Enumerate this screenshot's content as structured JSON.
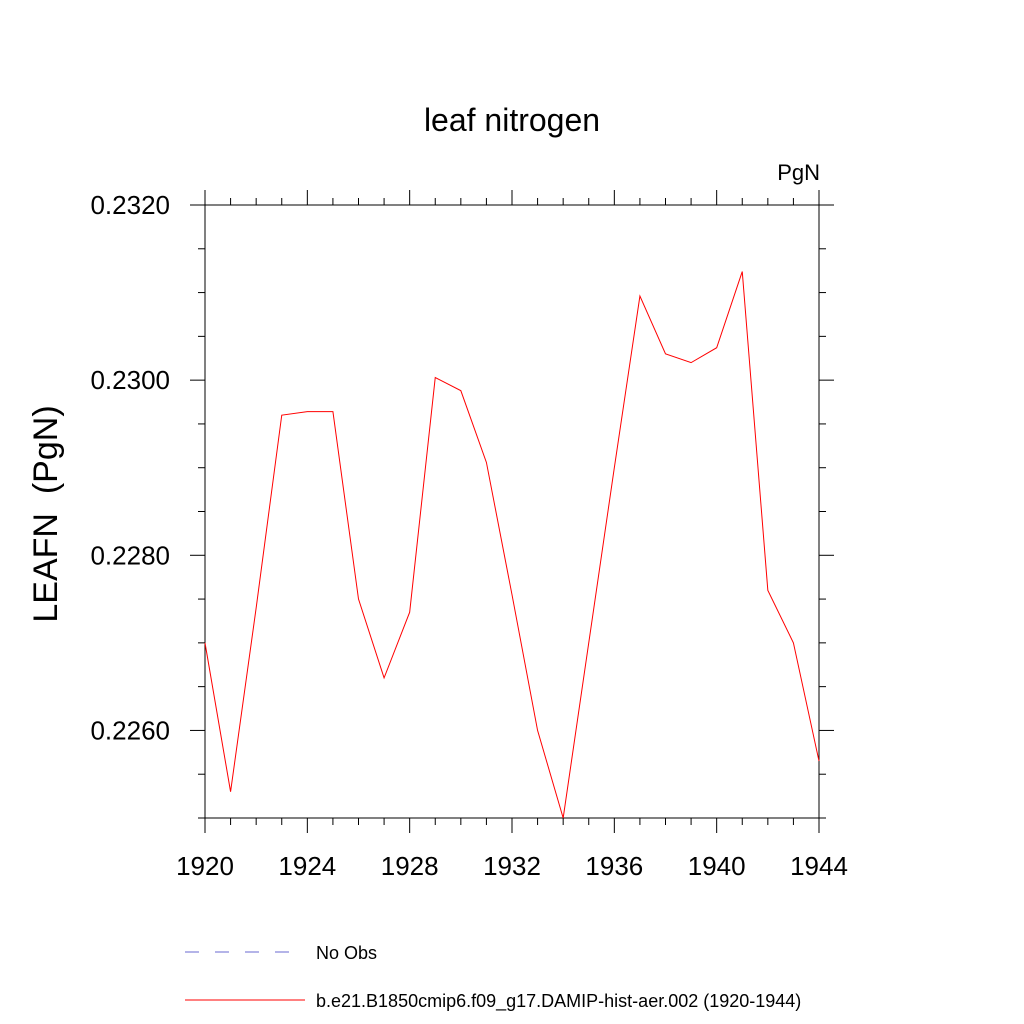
{
  "chart_data": {
    "type": "line",
    "title": "leaf nitrogen",
    "units_label": "PgN",
    "ylabel": "LEAFN  (PgN)",
    "xlabel": "",
    "xlim": [
      1920,
      1944
    ],
    "ylim": [
      0.225,
      0.232
    ],
    "x_ticks": [
      1920,
      1924,
      1928,
      1932,
      1936,
      1940,
      1944
    ],
    "x_tick_labels": [
      "1920",
      "1924",
      "1928",
      "1932",
      "1936",
      "1940",
      "1944"
    ],
    "y_ticks": [
      0.226,
      0.228,
      0.23,
      0.232
    ],
    "y_tick_labels": [
      "0.2260",
      "0.2280",
      "0.2300",
      "0.2320"
    ],
    "grid": false,
    "legend_position": "bottom",
    "series": [
      {
        "name": "b.e21.B1850cmip6.f09_g17.DAMIP-hist-aer.002 (1920-1944)",
        "color": "#ff0000",
        "dash": "solid",
        "x": [
          1920,
          1921,
          1922,
          1923,
          1924,
          1925,
          1926,
          1927,
          1928,
          1929,
          1930,
          1931,
          1932,
          1933,
          1934,
          1935,
          1936,
          1937,
          1938,
          1939,
          1940,
          1941,
          1942,
          1943,
          1944
        ],
        "y": [
          0.227,
          0.2253,
          0.2274,
          0.2296,
          0.22964,
          0.22964,
          0.2275,
          0.2266,
          0.22735,
          0.23003,
          0.22988,
          0.22906,
          0.22755,
          0.226,
          0.225,
          0.227,
          0.229,
          0.23096,
          0.2303,
          0.2302,
          0.23037,
          0.23124,
          0.2276,
          0.227,
          0.22565
        ]
      }
    ],
    "legend": [
      {
        "label": "No Obs",
        "color": "#6a6ad0",
        "dash": "dashed"
      },
      {
        "label": "b.e21.B1850cmip6.f09_g17.DAMIP-hist-aer.002 (1920-1944)",
        "color": "#ff0000",
        "dash": "solid"
      }
    ]
  }
}
